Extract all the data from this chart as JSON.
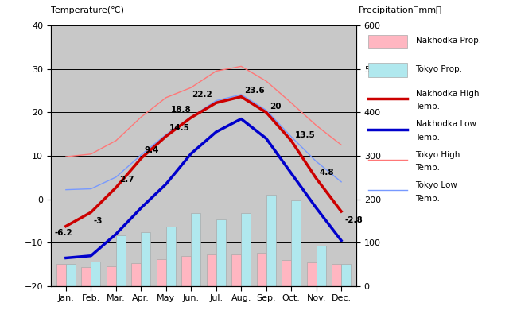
{
  "months": [
    "Jan.",
    "Feb.",
    "Mar.",
    "Apr.",
    "May",
    "Jun.",
    "Jul.",
    "Aug.",
    "Sep.",
    "Oct.",
    "Nov.",
    "Dec."
  ],
  "nakhodka_high": [
    -6.2,
    -3.0,
    2.7,
    9.4,
    14.5,
    18.8,
    22.2,
    23.6,
    20.0,
    13.5,
    4.8,
    -2.8
  ],
  "nakhodka_low": [
    -13.5,
    -13.0,
    -8.0,
    -2.0,
    3.5,
    10.5,
    15.5,
    18.5,
    14.0,
    6.0,
    -2.0,
    -9.5
  ],
  "tokyo_high": [
    9.8,
    10.4,
    13.5,
    18.9,
    23.4,
    25.7,
    29.5,
    30.6,
    27.2,
    22.2,
    17.0,
    12.5
  ],
  "tokyo_low": [
    2.2,
    2.4,
    5.1,
    10.2,
    14.9,
    18.9,
    22.7,
    24.1,
    20.5,
    14.4,
    8.7,
    4.0
  ],
  "nakhodka_precip_mm": [
    51,
    43,
    45,
    53,
    62,
    70,
    73,
    74,
    77,
    60,
    54,
    51
  ],
  "tokyo_precip_mm": [
    52,
    56,
    117,
    125,
    138,
    168,
    154,
    168,
    210,
    197,
    93,
    51
  ],
  "temp_min": -20,
  "temp_max": 40,
  "precip_min": 0,
  "precip_max": 600,
  "bg_color": "#c8c8c8",
  "title_left": "Temperature(℃)",
  "title_right": "Precipitation（mm）",
  "nakhodka_high_color": "#cc0000",
  "nakhodka_low_color": "#0000cc",
  "tokyo_high_color": "#ff7777",
  "tokyo_low_color": "#7799ff",
  "nakhodka_precip_color": "#ffb6c1",
  "tokyo_precip_color": "#b0e8ee",
  "nh_annot": {
    "0": [
      "-6.2",
      -10,
      -8
    ],
    "1": [
      "-3",
      2,
      -10
    ],
    "2": [
      "2.7",
      3,
      5
    ],
    "3": [
      "9.4",
      3,
      5
    ],
    "4": [
      "14.5",
      3,
      5
    ],
    "5": [
      "18.8",
      -18,
      5
    ],
    "6": [
      "22.2",
      -22,
      5
    ],
    "7": [
      "23.6",
      3,
      3
    ],
    "8": [
      "20",
      3,
      3
    ],
    "9": [
      "13.5",
      3,
      3
    ],
    "10": [
      "4.8",
      3,
      3
    ],
    "11": [
      "-2.8",
      3,
      -10
    ]
  }
}
